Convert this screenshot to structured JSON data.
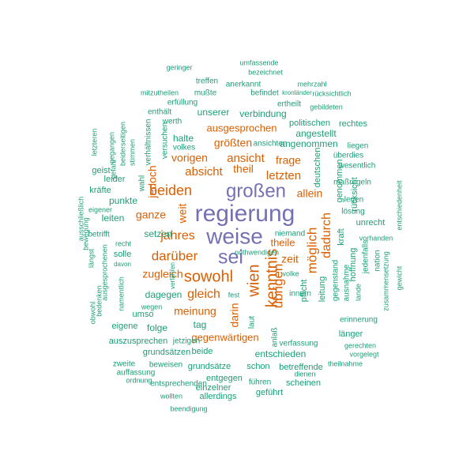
{
  "colors": {
    "purple": "#7570b3",
    "orange": "#d95f02",
    "teal": "#1b9e77"
  },
  "words": [
    {
      "text": "regierung",
      "color": "purple"
    },
    {
      "text": "weise",
      "color": "purple"
    },
    {
      "text": "großen",
      "color": "purple"
    },
    {
      "text": "sei",
      "color": "purple"
    },
    {
      "text": "sowohl",
      "color": "orange"
    },
    {
      "text": "beiden",
      "color": "orange"
    },
    {
      "text": "darüber",
      "color": "orange"
    },
    {
      "text": "wien",
      "color": "orange"
    },
    {
      "text": "kenntnis",
      "color": "orange"
    },
    {
      "text": "gleich",
      "color": "orange"
    },
    {
      "text": "jahres",
      "color": "orange"
    },
    {
      "text": "übrigen",
      "color": "orange"
    },
    {
      "text": "möglich",
      "color": "orange"
    },
    {
      "text": "dadurch",
      "color": "orange"
    },
    {
      "text": "ganze",
      "color": "orange"
    },
    {
      "text": "letzten",
      "color": "orange"
    },
    {
      "text": "ansicht",
      "color": "orange"
    },
    {
      "text": "theil",
      "color": "orange"
    },
    {
      "text": "absicht",
      "color": "orange"
    },
    {
      "text": "meinung",
      "color": "orange"
    },
    {
      "text": "allein",
      "color": "orange"
    },
    {
      "text": "frage",
      "color": "orange"
    },
    {
      "text": "größten",
      "color": "orange"
    },
    {
      "text": "zeit",
      "color": "orange"
    },
    {
      "text": "vorigen",
      "color": "orange"
    },
    {
      "text": "darin",
      "color": "orange"
    },
    {
      "text": "zugleich",
      "color": "orange"
    },
    {
      "text": "jedoch",
      "color": "orange"
    },
    {
      "text": "weit",
      "color": "orange"
    },
    {
      "text": "theile",
      "color": "orange"
    },
    {
      "text": "ausgesprochen",
      "color": "orange"
    },
    {
      "text": "gegenwärtigen",
      "color": "orange"
    },
    {
      "text": "halte",
      "color": "teal"
    },
    {
      "text": "dagegen",
      "color": "teal"
    },
    {
      "text": "setzen",
      "color": "teal"
    },
    {
      "text": "unserer",
      "color": "teal"
    },
    {
      "text": "verbindung",
      "color": "teal"
    },
    {
      "text": "politischen",
      "color": "teal"
    },
    {
      "text": "rechtes",
      "color": "teal"
    },
    {
      "text": "angestellt",
      "color": "teal"
    },
    {
      "text": "angenommen",
      "color": "teal"
    },
    {
      "text": "ansichten",
      "color": "teal"
    },
    {
      "text": "liegen",
      "color": "teal"
    },
    {
      "text": "überdies",
      "color": "teal"
    },
    {
      "text": "wesentlich",
      "color": "teal"
    },
    {
      "text": "maßregeln",
      "color": "teal"
    },
    {
      "text": "legen",
      "color": "teal"
    },
    {
      "text": "lösung",
      "color": "teal"
    },
    {
      "text": "unrecht",
      "color": "teal"
    },
    {
      "text": "vorhanden",
      "color": "teal"
    },
    {
      "text": "niemand",
      "color": "teal"
    },
    {
      "text": "kraft",
      "color": "teal"
    },
    {
      "text": "genommen",
      "color": "teal"
    },
    {
      "text": "rücksicht",
      "color": "teal"
    },
    {
      "text": "deutschen",
      "color": "teal"
    },
    {
      "text": "pflicht",
      "color": "teal"
    },
    {
      "text": "leitung",
      "color": "teal"
    },
    {
      "text": "gegenstand",
      "color": "teal"
    },
    {
      "text": "hoffnung",
      "color": "teal"
    },
    {
      "text": "jedenfalls",
      "color": "teal"
    },
    {
      "text": "ausnahme",
      "color": "teal"
    },
    {
      "text": "lande",
      "color": "teal"
    },
    {
      "text": "nation",
      "color": "teal"
    },
    {
      "text": "zusammensetzung",
      "color": "teal"
    },
    {
      "text": "gewicht",
      "color": "teal"
    },
    {
      "text": "entschiedenheit",
      "color": "teal"
    },
    {
      "text": "erinnerung",
      "color": "teal"
    },
    {
      "text": "länger",
      "color": "teal"
    },
    {
      "text": "gerechten",
      "color": "teal"
    },
    {
      "text": "vorgelegt",
      "color": "teal"
    },
    {
      "text": "theilnahme",
      "color": "teal"
    },
    {
      "text": "scheinen",
      "color": "teal"
    },
    {
      "text": "dienen",
      "color": "teal"
    },
    {
      "text": "betreffende",
      "color": "teal"
    },
    {
      "text": "schon",
      "color": "teal"
    },
    {
      "text": "entschieden",
      "color": "teal"
    },
    {
      "text": "verfassung",
      "color": "teal"
    },
    {
      "text": "anlaß",
      "color": "teal"
    },
    {
      "text": "laut",
      "color": "teal"
    },
    {
      "text": "volke",
      "color": "teal"
    },
    {
      "text": "innern",
      "color": "teal"
    },
    {
      "text": "fest",
      "color": "teal"
    },
    {
      "text": "tag",
      "color": "teal"
    },
    {
      "text": "beide",
      "color": "teal"
    },
    {
      "text": "grundsätze",
      "color": "teal"
    },
    {
      "text": "entgegen",
      "color": "teal"
    },
    {
      "text": "einzelner",
      "color": "teal"
    },
    {
      "text": "führen",
      "color": "teal"
    },
    {
      "text": "geführt",
      "color": "teal"
    },
    {
      "text": "allerdings",
      "color": "teal"
    },
    {
      "text": "wollten",
      "color": "teal"
    },
    {
      "text": "beendigung",
      "color": "teal"
    },
    {
      "text": "entsprechenden",
      "color": "teal"
    },
    {
      "text": "ordnung",
      "color": "teal"
    },
    {
      "text": "auffassung",
      "color": "teal"
    },
    {
      "text": "beweisen",
      "color": "teal"
    },
    {
      "text": "zweite",
      "color": "teal"
    },
    {
      "text": "grundsätzen",
      "color": "teal"
    },
    {
      "text": "auszusprechen",
      "color": "teal"
    },
    {
      "text": "jetzigen",
      "color": "teal"
    },
    {
      "text": "folge",
      "color": "teal"
    },
    {
      "text": "eigene",
      "color": "teal"
    },
    {
      "text": "umso",
      "color": "teal"
    },
    {
      "text": "wegen",
      "color": "teal"
    },
    {
      "text": "verfahren",
      "color": "teal"
    },
    {
      "text": "solle",
      "color": "teal"
    },
    {
      "text": "recht",
      "color": "teal"
    },
    {
      "text": "davon",
      "color": "teal"
    },
    {
      "text": "betrifft",
      "color": "teal"
    },
    {
      "text": "leiten",
      "color": "teal"
    },
    {
      "text": "punkte",
      "color": "teal"
    },
    {
      "text": "leider",
      "color": "teal"
    },
    {
      "text": "kräfte",
      "color": "teal"
    },
    {
      "text": "geist",
      "color": "teal"
    },
    {
      "text": "eigener",
      "color": "teal"
    },
    {
      "text": "wahl",
      "color": "teal"
    },
    {
      "text": "letzteren",
      "color": "teal"
    },
    {
      "text": "gefahr",
      "color": "teal"
    },
    {
      "text": "gegangen",
      "color": "teal"
    },
    {
      "text": "beiderseitigen",
      "color": "teal"
    },
    {
      "text": "stimmen",
      "color": "teal"
    },
    {
      "text": "verhältnissen",
      "color": "teal"
    },
    {
      "text": "versuchen",
      "color": "teal"
    },
    {
      "text": "volkes",
      "color": "teal"
    },
    {
      "text": "werth",
      "color": "teal"
    },
    {
      "text": "enthält",
      "color": "teal"
    },
    {
      "text": "erfüllung",
      "color": "teal"
    },
    {
      "text": "mitzutheilen",
      "color": "teal"
    },
    {
      "text": "mußte",
      "color": "teal"
    },
    {
      "text": "befindet",
      "color": "teal"
    },
    {
      "text": "kronländer",
      "color": "teal"
    },
    {
      "text": "rücksichtlich",
      "color": "teal"
    },
    {
      "text": "ertheilt",
      "color": "teal"
    },
    {
      "text": "gebildeten",
      "color": "teal"
    },
    {
      "text": "anerkannt",
      "color": "teal"
    },
    {
      "text": "treffen",
      "color": "teal"
    },
    {
      "text": "mehrzahl",
      "color": "teal"
    },
    {
      "text": "geringer",
      "color": "teal"
    },
    {
      "text": "umfassende",
      "color": "teal"
    },
    {
      "text": "bezeichnet",
      "color": "teal"
    },
    {
      "text": "ausschließlich",
      "color": "teal"
    },
    {
      "text": "bewegung",
      "color": "teal"
    },
    {
      "text": "längst",
      "color": "teal"
    },
    {
      "text": "ausgesprochenen",
      "color": "teal"
    },
    {
      "text": "bedenken",
      "color": "teal"
    },
    {
      "text": "obwohl",
      "color": "teal"
    },
    {
      "text": "namentlich",
      "color": "teal"
    },
    {
      "text": "nothwendigen",
      "color": "teal"
    },
    {
      "text": "wählen",
      "color": "teal"
    },
    {
      "text": "p",
      "color": "teal"
    }
  ]
}
